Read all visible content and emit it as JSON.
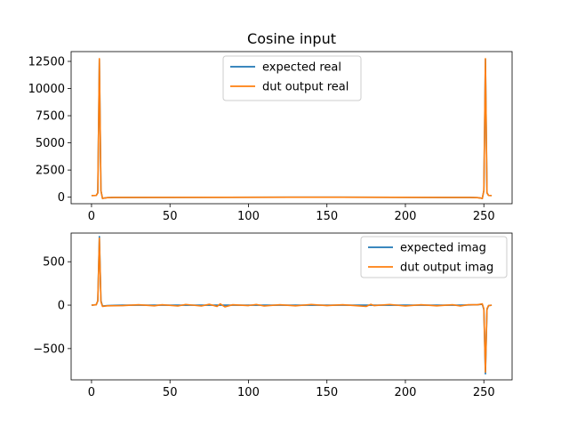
{
  "figure": {
    "title": "Cosine input"
  },
  "colors": {
    "expected": "#1f77b4",
    "dut": "#ff7f0e"
  },
  "chart_data": [
    {
      "type": "line",
      "title": "Cosine input",
      "xlabel": "",
      "ylabel": "",
      "xlim": [
        -13,
        268
      ],
      "ylim": [
        -600,
        13400
      ],
      "xticks": [
        0,
        50,
        100,
        150,
        200,
        250
      ],
      "yticks": [
        0,
        2500,
        5000,
        7500,
        10000,
        12500
      ],
      "legend_position": "upper center",
      "series": [
        {
          "name": "expected real",
          "color": "#1f77b4",
          "points": [
            [
              0,
              150
            ],
            [
              3,
              160
            ],
            [
              4,
              400
            ],
            [
              5,
              12700
            ],
            [
              6,
              600
            ],
            [
              7,
              -120
            ],
            [
              8,
              -80
            ],
            [
              10,
              -40
            ],
            [
              15,
              -20
            ],
            [
              128,
              0
            ],
            [
              241,
              -20
            ],
            [
              246,
              -40
            ],
            [
              248,
              -80
            ],
            [
              249,
              -120
            ],
            [
              250,
              600
            ],
            [
              251,
              12700
            ],
            [
              252,
              400
            ],
            [
              253,
              160
            ],
            [
              255,
              150
            ]
          ]
        },
        {
          "name": "dut output real",
          "color": "#ff7f0e",
          "points": [
            [
              0,
              150
            ],
            [
              3,
              160
            ],
            [
              4,
              400
            ],
            [
              5,
              12750
            ],
            [
              6,
              600
            ],
            [
              7,
              -120
            ],
            [
              8,
              -80
            ],
            [
              10,
              -40
            ],
            [
              15,
              -20
            ],
            [
              128,
              0
            ],
            [
              241,
              -20
            ],
            [
              246,
              -40
            ],
            [
              248,
              -80
            ],
            [
              249,
              -120
            ],
            [
              250,
              600
            ],
            [
              251,
              12750
            ],
            [
              252,
              400
            ],
            [
              253,
              160
            ],
            [
              255,
              150
            ]
          ]
        }
      ]
    },
    {
      "type": "line",
      "title": "",
      "xlabel": "",
      "ylabel": "",
      "xlim": [
        -13,
        268
      ],
      "ylim": [
        -860,
        830
      ],
      "xticks": [
        0,
        50,
        100,
        150,
        200,
        250
      ],
      "yticks": [
        -500,
        0,
        500
      ],
      "legend_position": "upper right",
      "series": [
        {
          "name": "expected imag",
          "color": "#1f77b4",
          "points": [
            [
              0,
              0
            ],
            [
              3,
              5
            ],
            [
              4,
              50
            ],
            [
              5,
              790
            ],
            [
              6,
              50
            ],
            [
              7,
              -10
            ],
            [
              10,
              -5
            ],
            [
              20,
              0
            ],
            [
              235,
              0
            ],
            [
              246,
              5
            ],
            [
              249,
              10
            ],
            [
              250,
              -50
            ],
            [
              251,
              -790
            ],
            [
              252,
              -50
            ],
            [
              253,
              -5
            ],
            [
              255,
              0
            ]
          ]
        },
        {
          "name": "dut output imag",
          "color": "#ff7f0e",
          "points": [
            [
              0,
              0
            ],
            [
              3,
              5
            ],
            [
              4,
              50
            ],
            [
              5,
              770
            ],
            [
              6,
              40
            ],
            [
              7,
              -15
            ],
            [
              10,
              -8
            ],
            [
              20,
              -5
            ],
            [
              30,
              5
            ],
            [
              40,
              -8
            ],
            [
              45,
              5
            ],
            [
              55,
              -10
            ],
            [
              60,
              8
            ],
            [
              70,
              -10
            ],
            [
              75,
              10
            ],
            [
              80,
              -15
            ],
            [
              82,
              15
            ],
            [
              85,
              -20
            ],
            [
              90,
              5
            ],
            [
              100,
              -5
            ],
            [
              105,
              8
            ],
            [
              110,
              -10
            ],
            [
              120,
              5
            ],
            [
              130,
              -8
            ],
            [
              140,
              8
            ],
            [
              150,
              -5
            ],
            [
              160,
              5
            ],
            [
              170,
              -8
            ],
            [
              175,
              -15
            ],
            [
              178,
              10
            ],
            [
              180,
              -5
            ],
            [
              190,
              8
            ],
            [
              200,
              -10
            ],
            [
              210,
              5
            ],
            [
              220,
              -8
            ],
            [
              230,
              5
            ],
            [
              235,
              -10
            ],
            [
              240,
              5
            ],
            [
              246,
              5
            ],
            [
              249,
              15
            ],
            [
              250,
              -40
            ],
            [
              251,
              -770
            ],
            [
              252,
              -40
            ],
            [
              253,
              -5
            ],
            [
              255,
              0
            ]
          ]
        }
      ]
    }
  ]
}
